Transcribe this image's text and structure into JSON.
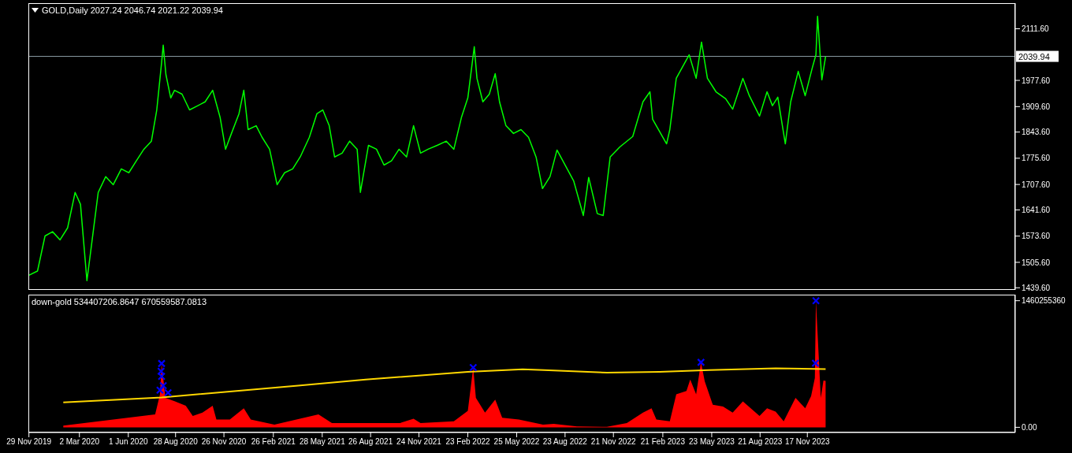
{
  "chart_data": [
    {
      "type": "line",
      "title": "GOLD,Daily 2027.24 2046.74 2021.22 2039.94",
      "color": "#00ff00",
      "x": [
        "2019-11-29",
        "2019-12-15",
        "2019-12-29",
        "2020-01-12",
        "2020-01-26",
        "2020-02-09",
        "2020-02-23",
        "2020-03-04",
        "2020-03-16",
        "2020-03-23",
        "2020-04-06",
        "2020-04-20",
        "2020-05-04",
        "2020-05-19",
        "2020-06-02",
        "2020-06-16",
        "2020-06-30",
        "2020-07-14",
        "2020-07-24",
        "2020-08-02",
        "2020-08-05",
        "2020-08-10",
        "2020-08-19",
        "2020-08-26",
        "2020-09-09",
        "2020-09-23",
        "2020-10-07",
        "2020-10-22",
        "2020-11-05",
        "2020-11-19",
        "2020-11-29",
        "2020-12-10",
        "2020-12-24",
        "2021-01-02",
        "2021-01-10",
        "2021-01-25",
        "2021-02-05",
        "2021-02-19",
        "2021-03-05",
        "2021-03-19",
        "2021-04-03",
        "2021-04-17",
        "2021-05-04",
        "2021-05-18",
        "2021-05-29",
        "2021-06-10",
        "2021-06-20",
        "2021-07-04",
        "2021-07-18",
        "2021-08-01",
        "2021-08-07",
        "2021-08-22",
        "2021-09-06",
        "2021-09-20",
        "2021-10-04",
        "2021-10-18",
        "2021-11-01",
        "2021-11-14",
        "2021-11-27",
        "2021-12-11",
        "2021-12-28",
        "2022-01-14",
        "2022-01-28",
        "2022-02-11",
        "2022-02-23",
        "2022-03-07",
        "2022-03-12",
        "2022-03-23",
        "2022-04-04",
        "2022-04-15",
        "2022-04-23",
        "2022-05-05",
        "2022-05-19",
        "2022-06-02",
        "2022-06-16",
        "2022-06-30",
        "2022-07-12",
        "2022-07-26",
        "2022-08-08",
        "2022-09-08",
        "2022-09-26",
        "2022-10-06",
        "2022-10-22",
        "2022-11-02",
        "2022-11-15",
        "2022-12-03",
        "2022-12-27",
        "2023-01-15",
        "2023-01-28",
        "2023-02-02",
        "2023-02-28",
        "2023-03-06",
        "2023-03-18",
        "2023-04-11",
        "2023-04-24",
        "2023-05-04",
        "2023-05-15",
        "2023-05-31",
        "2023-06-18",
        "2023-07-01",
        "2023-07-20",
        "2023-08-01",
        "2023-08-20",
        "2023-09-03",
        "2023-09-13",
        "2023-09-23",
        "2023-10-07",
        "2023-10-17",
        "2023-10-31",
        "2023-11-13",
        "2023-11-26",
        "2023-12-03",
        "2023-12-06",
        "2023-12-14",
        "2023-12-21"
      ],
      "values": [
        1472,
        1483,
        1574,
        1585,
        1564,
        1595,
        1687,
        1656,
        1458,
        1534,
        1687,
        1728,
        1707,
        1748,
        1738,
        1769,
        1799,
        1820,
        1901,
        2024,
        2069,
        1993,
        1932,
        1952,
        1942,
        1901,
        1911,
        1922,
        1952,
        1881,
        1799,
        1840,
        1891,
        1952,
        1850,
        1860,
        1830,
        1799,
        1707,
        1738,
        1748,
        1779,
        1830,
        1891,
        1901,
        1860,
        1779,
        1789,
        1820,
        1799,
        1687,
        1809,
        1799,
        1758,
        1769,
        1799,
        1779,
        1860,
        1789,
        1799,
        1809,
        1820,
        1799,
        1881,
        1932,
        2065,
        1983,
        1922,
        1942,
        1995,
        1922,
        1860,
        1840,
        1850,
        1830,
        1779,
        1697,
        1728,
        1797,
        1717,
        1627,
        1726,
        1632,
        1627,
        1779,
        1805,
        1832,
        1922,
        1948,
        1877,
        1813,
        1850,
        1983,
        2044,
        1983,
        2077,
        1983,
        1948,
        1930,
        1903,
        1983,
        1938,
        1885,
        1948,
        1912,
        1934,
        1813,
        1922,
        2001,
        1938,
        2009,
        2044,
        2144,
        1979,
        2039.94
      ],
      "ylim": [
        1434,
        2178
      ],
      "yticks": [
        {
          "value": 1439.6,
          "label": "1439.60"
        },
        {
          "value": 1505.6,
          "label": "1505.60"
        },
        {
          "value": 1573.6,
          "label": "1573.60"
        },
        {
          "value": 1641.6,
          "label": "1641.60"
        },
        {
          "value": 1707.6,
          "label": "1707.60"
        },
        {
          "value": 1775.6,
          "label": "1775.60"
        },
        {
          "value": 1843.6,
          "label": "1843.60"
        },
        {
          "value": 1909.6,
          "label": "1909.60"
        },
        {
          "value": 1977.6,
          "label": "1977.60"
        },
        {
          "value": 2111.6,
          "label": "2111.60"
        }
      ],
      "xlim": [
        "2019-11-28",
        "2024-12-08"
      ],
      "tick_labels": "y",
      "ref_lines": [
        {
          "axis": "y",
          "value": 2039.94,
          "label": "2039.94",
          "color": "#8a9aa4"
        }
      ]
    },
    {
      "type": "area",
      "title": "down-gold 534407206.8647 670559587.0813",
      "series": [
        {
          "type": "area",
          "color": "#ff0000",
          "x": [
            "2020-02-01",
            "2020-07-21",
            "2020-07-30",
            "2020-08-02",
            "2020-08-09",
            "2020-08-27",
            "2020-09-16",
            "2020-09-29",
            "2020-10-17",
            "2020-11-05",
            "2020-11-12",
            "2020-12-07",
            "2021-01-02",
            "2021-01-15",
            "2021-02-28",
            "2021-05-21",
            "2021-06-15",
            "2021-08-17",
            "2021-10-20",
            "2021-11-14",
            "2021-11-27",
            "2022-01-28",
            "2022-02-23",
            "2022-03-05",
            "2022-03-10",
            "2022-03-27",
            "2022-04-15",
            "2022-04-28",
            "2022-05-29",
            "2022-07-13",
            "2022-08-02",
            "2022-09-14",
            "2022-11-09",
            "2022-12-16",
            "2023-01-15",
            "2023-01-31",
            "2023-02-09",
            "2023-03-06",
            "2023-03-18",
            "2023-04-06",
            "2023-04-13",
            "2023-04-24",
            "2023-05-03",
            "2023-05-10",
            "2023-05-25",
            "2023-06-13",
            "2023-07-01",
            "2023-07-20",
            "2023-08-20",
            "2023-09-03",
            "2023-09-19",
            "2023-10-04",
            "2023-10-26",
            "2023-11-13",
            "2023-11-24",
            "2023-12-01",
            "2023-12-03",
            "2023-12-12",
            "2023-12-17",
            "2023-12-21"
          ],
          "values": [
            20000000,
            150000000,
            380000000,
            736000000,
            340000000,
            300000000,
            250000000,
            130000000,
            170000000,
            250000000,
            90000000,
            90000000,
            220000000,
            90000000,
            30000000,
            150000000,
            50000000,
            50000000,
            50000000,
            100000000,
            50000000,
            70000000,
            190000000,
            690000000,
            340000000,
            170000000,
            320000000,
            110000000,
            90000000,
            30000000,
            40000000,
            10000000,
            5000000,
            50000000,
            170000000,
            220000000,
            90000000,
            70000000,
            380000000,
            420000000,
            550000000,
            380000000,
            750000000,
            530000000,
            260000000,
            240000000,
            170000000,
            300000000,
            130000000,
            220000000,
            180000000,
            70000000,
            340000000,
            220000000,
            360000000,
            570000000,
            1460255360,
            340000000,
            540000000,
            534407206.8647
          ]
        },
        {
          "type": "line",
          "color": "#ffd700",
          "x": [
            "2020-02-01",
            "2020-08-02",
            "2021-04-13",
            "2021-08-17",
            "2022-02-23",
            "2022-06-05",
            "2022-07-15",
            "2022-11-09",
            "2023-02-15",
            "2023-05-18",
            "2023-09-19",
            "2023-12-21"
          ],
          "values": [
            287000000,
            345000000,
            480000000,
            550000000,
            640000000,
            670000000,
            660000000,
            630000000,
            640000000,
            660000000,
            680000000,
            670559587.0813
          ]
        },
        {
          "type": "scatter",
          "color": "#0000ff",
          "marker": "cross",
          "x": [
            "2020-08-02",
            "2020-08-01",
            "2020-08-02",
            "2020-08-05",
            "2020-07-30",
            "2020-08-14",
            "2022-03-05",
            "2023-05-03",
            "2023-12-03",
            "2023-12-02"
          ],
          "values": [
            736000000,
            646000000,
            587000000,
            480000000,
            428000000,
            398000000,
            690000000,
            750000000,
            1460255360,
            740000000
          ]
        }
      ],
      "ylim": [
        -60000000,
        1530000000
      ],
      "yticks": [
        {
          "value": 0,
          "label": "0.00"
        },
        {
          "value": 1460255360,
          "label": "1460255360"
        }
      ],
      "xlim": [
        "2019-11-28",
        "2024-12-08"
      ],
      "xticks": [
        {
          "value": "2019-11-29",
          "label": "29 Nov 2019"
        },
        {
          "value": "2020-03-02",
          "label": "2 Mar 2020"
        },
        {
          "value": "2020-06-01",
          "label": "1 Jun 2020"
        },
        {
          "value": "2020-08-28",
          "label": "28 Aug 2020"
        },
        {
          "value": "2020-11-26",
          "label": "26 Nov 2020"
        },
        {
          "value": "2021-02-26",
          "label": "26 Feb 2021"
        },
        {
          "value": "2021-05-28",
          "label": "28 May 2021"
        },
        {
          "value": "2021-08-26",
          "label": "26 Aug 2021"
        },
        {
          "value": "2021-11-24",
          "label": "24 Nov 2021"
        },
        {
          "value": "2022-02-23",
          "label": "23 Feb 2022"
        },
        {
          "value": "2022-05-25",
          "label": "25 May 2022"
        },
        {
          "value": "2022-08-23",
          "label": "23 Aug 2022"
        },
        {
          "value": "2022-11-21",
          "label": "21 Nov 2022"
        },
        {
          "value": "2023-02-21",
          "label": "21 Feb 2023"
        },
        {
          "value": "2023-05-23",
          "label": "23 May 2023"
        },
        {
          "value": "2023-08-21",
          "label": "21 Aug 2023"
        },
        {
          "value": "2023-11-17",
          "label": "17 Nov 2023"
        }
      ]
    }
  ]
}
